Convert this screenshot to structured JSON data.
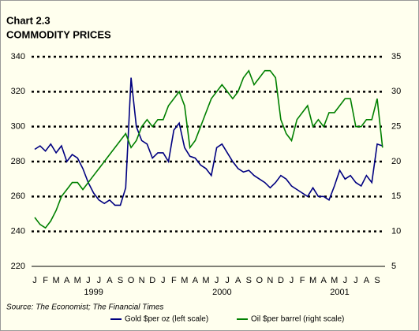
{
  "chart_data": {
    "type": "line",
    "title": "Chart  2.3",
    "subtitle": "COMMODITY PRICES",
    "source": "Source:  The Economist; The Financial Times",
    "categories": [
      "J",
      null,
      "F",
      null,
      "M",
      null,
      "A",
      null,
      "M",
      null,
      "J",
      null,
      "J",
      null,
      "A",
      null,
      "S",
      null,
      "O",
      null,
      "N",
      null,
      "D",
      null,
      "J",
      null,
      "F",
      null,
      "M",
      null,
      "A",
      null,
      "M",
      null,
      "J",
      null,
      "J",
      null,
      "A",
      null,
      "S",
      null,
      "O",
      null,
      "N",
      null,
      "D",
      null,
      "J",
      null,
      "F",
      null,
      "M",
      null,
      "A",
      null,
      "M",
      null,
      "J",
      null,
      "J",
      null,
      "A",
      null,
      "S",
      null
    ],
    "year_labels": [
      "1999",
      "2000",
      "2001"
    ],
    "ylim": [
      220,
      340
    ],
    "yticks": [
      220,
      240,
      260,
      280,
      300,
      320,
      340
    ],
    "y2lim": [
      5,
      35
    ],
    "y2ticks": [
      5,
      10,
      15,
      20,
      25,
      30,
      35
    ],
    "grid": true,
    "series": [
      {
        "name": "Gold $per oz (left scale)",
        "color": "#000080",
        "axis": "y",
        "values": [
          287,
          289,
          286,
          290,
          285,
          289,
          280,
          284,
          282,
          276,
          268,
          262,
          258,
          256,
          258,
          255,
          255,
          265,
          328,
          300,
          292,
          290,
          282,
          285,
          285,
          280,
          298,
          302,
          288,
          283,
          282,
          278,
          276,
          272,
          288,
          290,
          285,
          280,
          276,
          274,
          275,
          272,
          270,
          268,
          265,
          268,
          272,
          270,
          266,
          264,
          262,
          260,
          265,
          260,
          260,
          258,
          266,
          275,
          270,
          272,
          268,
          266,
          272,
          268,
          290,
          289
        ]
      },
      {
        "name": "Oil $per barrel (right scale)",
        "color": "#008000",
        "axis": "y2",
        "values": [
          12,
          11,
          10.5,
          11.5,
          13,
          15,
          16,
          17,
          17,
          16,
          17,
          18,
          19,
          20,
          21,
          22,
          23,
          24,
          22,
          23,
          25,
          26,
          25,
          26,
          26,
          28,
          29,
          30,
          28,
          22,
          23,
          25,
          27,
          29,
          30,
          31,
          30,
          29,
          30,
          32,
          33,
          31,
          32,
          33,
          33,
          32,
          26,
          24,
          23,
          26,
          27,
          28,
          25,
          26,
          25,
          27,
          27,
          28,
          29,
          29,
          25,
          25,
          26,
          26,
          29,
          22
        ]
      }
    ]
  }
}
